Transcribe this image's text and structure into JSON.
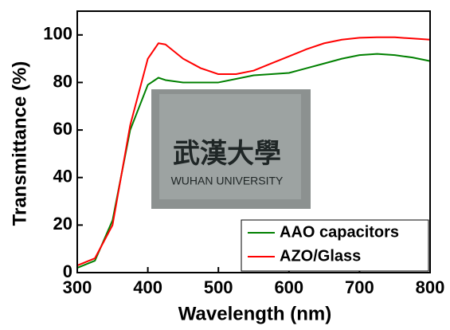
{
  "chart_data": {
    "type": "line",
    "xlabel": "Wavelength (nm)",
    "ylabel": "Transmittance (%)",
    "x": [
      300,
      325,
      350,
      375,
      400,
      415,
      425,
      450,
      475,
      500,
      525,
      550,
      575,
      600,
      625,
      650,
      675,
      700,
      725,
      750,
      775,
      800
    ],
    "series": [
      {
        "name": "AAO capacitors",
        "color": "#008000",
        "values": [
          2,
          5,
          22,
          60,
          79,
          82,
          81,
          80,
          80,
          80,
          81.5,
          83,
          83.5,
          84,
          86,
          88,
          90,
          91.5,
          92,
          91.5,
          90.5,
          89
        ]
      },
      {
        "name": "AZO/Glass",
        "color": "#ff0000",
        "values": [
          3,
          6,
          20,
          62,
          90,
          96.5,
          96,
          90,
          86,
          83.5,
          83.5,
          85,
          88,
          91,
          94,
          96.5,
          98,
          98.8,
          99,
          99,
          98.5,
          98
        ]
      }
    ],
    "xlim": [
      300,
      800
    ],
    "xticks": [
      300,
      400,
      500,
      600,
      700,
      800
    ],
    "ylim": [
      0,
      110
    ],
    "yticks": [
      0,
      20,
      40,
      60,
      80,
      100
    ],
    "legend": "lower right",
    "inset": {
      "title": "武漢大學",
      "label": "WUHAN UNIVERSITY"
    }
  }
}
